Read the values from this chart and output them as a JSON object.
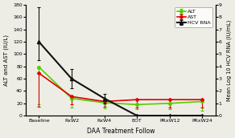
{
  "x_labels": [
    "Baseline",
    "RxW2",
    "RxW4",
    "EOT",
    "PRxW12",
    "PRxW24"
  ],
  "x_values": [
    0,
    1,
    2,
    3,
    4,
    5
  ],
  "alt_mean": [
    79,
    28,
    21,
    18,
    20,
    23
  ],
  "alt_err_lower": [
    61,
    15,
    9,
    8,
    9,
    15
  ],
  "ast_mean": [
    69,
    31,
    23,
    26,
    26,
    26
  ],
  "ast_err_lower": [
    54,
    12,
    8,
    13,
    13,
    13
  ],
  "hcv_mean": [
    6.0,
    3.0,
    1.4,
    0.0,
    0.0,
    0.0
  ],
  "hcv_err_upper": [
    2.8,
    0.8,
    0.4,
    0.0,
    0.0,
    0.0
  ],
  "hcv_err_lower": [
    1.5,
    0.8,
    0.4,
    0.0,
    0.0,
    0.0
  ],
  "alt_color": "#55cc00",
  "ast_color": "#dd0000",
  "hcv_color": "#111111",
  "xlabel": "DAA Treatment Follow",
  "ylabel_left": "ALT and AST (IU/L)",
  "ylabel_right": "Mean Log 10 HCV RNA (IU/mL)",
  "ylim_left": [
    0,
    180
  ],
  "ylim_right": [
    0,
    9
  ],
  "yticks_left": [
    0,
    20,
    40,
    60,
    80,
    100,
    120,
    140,
    160,
    180
  ],
  "yticks_right": [
    0,
    1,
    2,
    3,
    4,
    5,
    6,
    7,
    8,
    9
  ],
  "background_color": "#eeede5",
  "legend_labels": [
    "ALT",
    "AST",
    "HCV RNA"
  ]
}
